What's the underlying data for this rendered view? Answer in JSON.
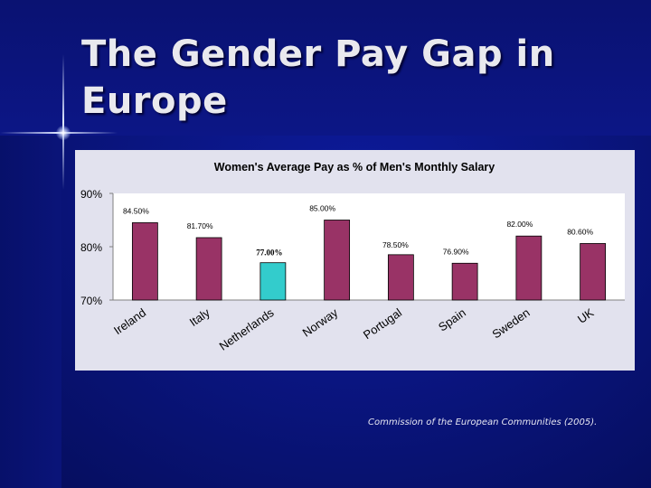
{
  "slide": {
    "title": "The Gender Pay Gap in Europe",
    "source": "Commission of the European Communities (2005)."
  },
  "colors": {
    "background": "#0a1580",
    "bar_default": "#993366",
    "bar_highlight": "#33cccc",
    "plot_area": "#ffffff",
    "chart_area": "#e2e2ee"
  },
  "chart_data": {
    "type": "bar",
    "title": "Women's Average Pay as % of Men's Monthly Salary",
    "xlabel": "",
    "ylabel": "",
    "ylim": [
      70,
      90
    ],
    "yticks": [
      70,
      80,
      90
    ],
    "ytick_labels": [
      "70%",
      "80%",
      "90%"
    ],
    "grid": false,
    "legend": "none",
    "categories": [
      "Ireland",
      "Italy",
      "Netherlands",
      "Norway",
      "Portugal",
      "Spain",
      "Sweden",
      "UK"
    ],
    "values": [
      84.5,
      81.7,
      77.0,
      85.0,
      78.5,
      76.9,
      82.0,
      80.6
    ],
    "data_labels": [
      "84.50%",
      "81.70%",
      "77.00%",
      "85.00%",
      "78.50%",
      "76.90%",
      "82.00%",
      "80.60%"
    ],
    "highlight_category": "Netherlands"
  }
}
